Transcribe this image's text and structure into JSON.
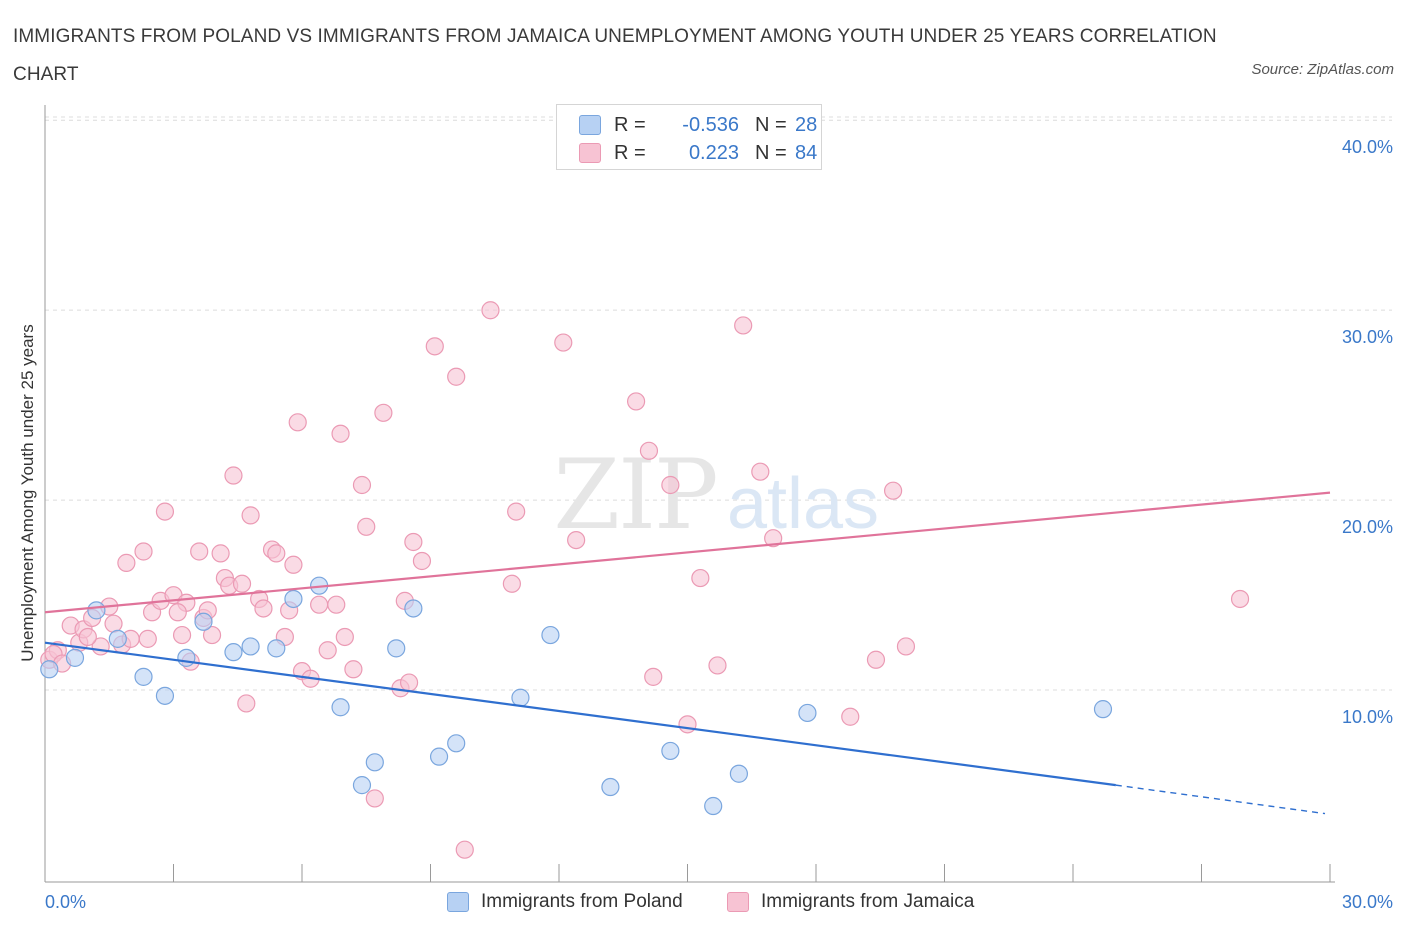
{
  "header": {
    "title": "IMMIGRANTS FROM POLAND VS IMMIGRANTS FROM JAMAICA UNEMPLOYMENT AMONG YOUTH UNDER 25 YEARS CORRELATION CHART",
    "source": "Source: ZipAtlas.com"
  },
  "legend": {
    "poland": {
      "r_label": "R =",
      "r_value": "-0.536",
      "n_label": "N =",
      "n_value": "28",
      "name": "Immigrants from Poland"
    },
    "jamaica": {
      "r_label": "R =",
      "r_value": "0.223",
      "n_label": "N =",
      "n_value": "84",
      "name": "Immigrants from Jamaica"
    }
  },
  "colors": {
    "poland_fill": "#b7d1f3",
    "poland_stroke": "#7aa6de",
    "poland_line": "#2f6fcf",
    "jamaica_fill": "#f7c3d3",
    "jamaica_stroke": "#eb9ab4",
    "jamaica_line": "#e0739a",
    "tick_label": "#3a78c9",
    "grid": "#dcdcdc"
  },
  "chart_data": {
    "type": "scatter",
    "title": "IMMIGRANTS FROM POLAND VS IMMIGRANTS FROM JAMAICA UNEMPLOYMENT AMONG YOUTH UNDER 25 YEARS CORRELATION CHART",
    "xlabel": "",
    "ylabel": "Unemployment Among Youth under 25 years",
    "xlim": [
      0,
      30
    ],
    "ylim": [
      0,
      40.8
    ],
    "x_tick_labels": [
      {
        "value": 0,
        "label": "0.0%"
      },
      {
        "value": 30,
        "label": "30.0%"
      }
    ],
    "y_tick_labels": [
      {
        "value": 10,
        "label": "10.0%"
      },
      {
        "value": 20,
        "label": "20.0%"
      },
      {
        "value": 30,
        "label": "30.0%"
      },
      {
        "value": 40,
        "label": "40.0%"
      }
    ],
    "grid": true,
    "watermark": "ZIPatlas",
    "series": [
      {
        "name": "Immigrants from Poland",
        "r": -0.536,
        "n": 28,
        "trend": {
          "x0": 0,
          "y0": 12.6,
          "x1": 25.0,
          "y1": 5.1,
          "dashed_to_x": 30.0,
          "dashed_to_y": 3.6
        },
        "points": [
          [
            0.1,
            11.2
          ],
          [
            0.7,
            11.8
          ],
          [
            1.2,
            14.3
          ],
          [
            1.7,
            12.8
          ],
          [
            2.3,
            10.8
          ],
          [
            2.8,
            9.8
          ],
          [
            3.3,
            11.8
          ],
          [
            3.7,
            13.7
          ],
          [
            4.4,
            12.1
          ],
          [
            4.8,
            12.4
          ],
          [
            5.4,
            12.3
          ],
          [
            5.8,
            14.9
          ],
          [
            6.4,
            15.6
          ],
          [
            6.9,
            9.2
          ],
          [
            7.4,
            5.1
          ],
          [
            7.7,
            6.3
          ],
          [
            8.2,
            12.3
          ],
          [
            8.6,
            14.4
          ],
          [
            9.2,
            6.6
          ],
          [
            9.6,
            7.3
          ],
          [
            11.1,
            9.7
          ],
          [
            11.8,
            13.0
          ],
          [
            13.2,
            5.0
          ],
          [
            14.6,
            6.9
          ],
          [
            15.6,
            4.0
          ],
          [
            16.2,
            5.7
          ],
          [
            17.8,
            8.9
          ],
          [
            24.7,
            9.1
          ]
        ]
      },
      {
        "name": "Immigrants from Jamaica",
        "r": 0.223,
        "n": 84,
        "trend": {
          "x0": 0,
          "y0": 14.2,
          "x1": 30.0,
          "y1": 20.5
        },
        "points": [
          [
            0.1,
            11.7
          ],
          [
            0.3,
            12.2
          ],
          [
            0.6,
            13.5
          ],
          [
            0.8,
            12.6
          ],
          [
            0.9,
            13.3
          ],
          [
            1.1,
            13.9
          ],
          [
            1.3,
            12.4
          ],
          [
            1.5,
            14.5
          ],
          [
            1.6,
            13.6
          ],
          [
            1.8,
            12.5
          ],
          [
            1.9,
            16.8
          ],
          [
            2.0,
            12.8
          ],
          [
            2.3,
            17.4
          ],
          [
            2.4,
            12.8
          ],
          [
            2.5,
            14.2
          ],
          [
            2.7,
            14.8
          ],
          [
            2.8,
            19.5
          ],
          [
            3.0,
            15.1
          ],
          [
            3.2,
            13.0
          ],
          [
            3.3,
            14.7
          ],
          [
            3.4,
            11.6
          ],
          [
            3.6,
            17.4
          ],
          [
            3.7,
            13.9
          ],
          [
            3.8,
            14.3
          ],
          [
            3.9,
            13.0
          ],
          [
            4.1,
            17.3
          ],
          [
            4.2,
            16.0
          ],
          [
            4.3,
            15.6
          ],
          [
            4.4,
            21.4
          ],
          [
            4.6,
            15.7
          ],
          [
            4.7,
            9.4
          ],
          [
            4.8,
            19.3
          ],
          [
            5.0,
            14.9
          ],
          [
            5.1,
            14.4
          ],
          [
            5.3,
            17.5
          ],
          [
            5.4,
            17.3
          ],
          [
            5.6,
            12.9
          ],
          [
            5.7,
            14.3
          ],
          [
            5.8,
            16.7
          ],
          [
            5.9,
            24.2
          ],
          [
            6.0,
            11.1
          ],
          [
            6.2,
            10.7
          ],
          [
            6.4,
            14.6
          ],
          [
            6.6,
            12.2
          ],
          [
            6.8,
            14.6
          ],
          [
            6.9,
            23.6
          ],
          [
            7.0,
            12.9
          ],
          [
            7.2,
            11.2
          ],
          [
            7.4,
            20.9
          ],
          [
            7.5,
            18.7
          ],
          [
            7.7,
            4.4
          ],
          [
            7.9,
            24.7
          ],
          [
            8.3,
            10.2
          ],
          [
            8.4,
            14.8
          ],
          [
            8.5,
            10.5
          ],
          [
            8.6,
            17.9
          ],
          [
            8.8,
            16.9
          ],
          [
            9.1,
            28.2
          ],
          [
            9.6,
            26.6
          ],
          [
            9.8,
            1.7
          ],
          [
            10.4,
            30.1
          ],
          [
            10.9,
            15.7
          ],
          [
            11.0,
            19.5
          ],
          [
            12.1,
            28.4
          ],
          [
            12.4,
            18.0
          ],
          [
            13.8,
            25.3
          ],
          [
            14.1,
            22.7
          ],
          [
            14.2,
            10.8
          ],
          [
            14.6,
            20.9
          ],
          [
            15.0,
            8.3
          ],
          [
            15.3,
            16.0
          ],
          [
            15.7,
            11.4
          ],
          [
            16.3,
            29.3
          ],
          [
            16.7,
            21.6
          ],
          [
            17.0,
            18.1
          ],
          [
            18.8,
            8.7
          ],
          [
            19.4,
            11.7
          ],
          [
            19.8,
            20.6
          ],
          [
            20.1,
            12.4
          ],
          [
            27.9,
            14.9
          ],
          [
            0.2,
            12.0
          ],
          [
            0.4,
            11.5
          ],
          [
            1.0,
            12.9
          ],
          [
            3.1,
            14.2
          ]
        ]
      }
    ]
  }
}
